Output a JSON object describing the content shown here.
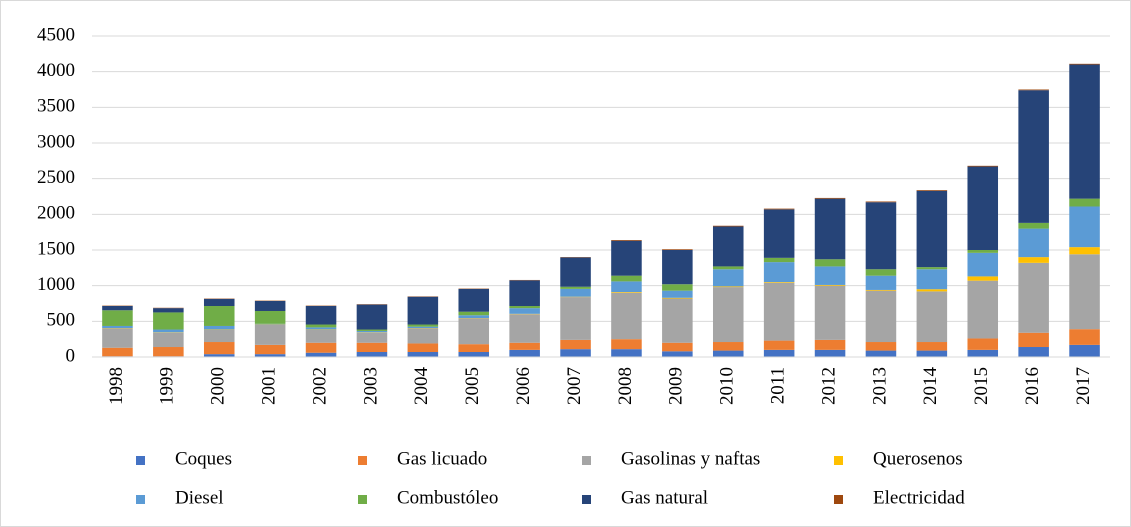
{
  "chart_data": {
    "type": "bar",
    "stacked": true,
    "categories": [
      "1998",
      "1999",
      "2000",
      "2001",
      "2002",
      "2003",
      "2004",
      "2005",
      "2006",
      "2007",
      "2008",
      "2009",
      "2010",
      "2011",
      "2012",
      "2013",
      "2014",
      "2015",
      "2016",
      "2017"
    ],
    "series": [
      {
        "name": "Coques",
        "color": "#4472c4",
        "values": [
          10,
          10,
          40,
          40,
          60,
          70,
          70,
          70,
          100,
          110,
          110,
          80,
          90,
          100,
          100,
          90,
          90,
          100,
          140,
          170
        ]
      },
      {
        "name": "Gas licuado",
        "color": "#ed7d31",
        "values": [
          120,
          130,
          170,
          130,
          140,
          130,
          120,
          110,
          100,
          130,
          140,
          120,
          120,
          130,
          140,
          120,
          120,
          160,
          200,
          220
        ]
      },
      {
        "name": "Gasolinas y naftas",
        "color": "#a5a5a5",
        "values": [
          270,
          200,
          170,
          280,
          180,
          140,
          210,
          360,
          400,
          600,
          650,
          620,
          770,
          810,
          760,
          720,
          710,
          810,
          980,
          1050
        ]
      },
      {
        "name": "Querosenos",
        "color": "#ffc000",
        "values": [
          5,
          5,
          5,
          5,
          5,
          5,
          5,
          5,
          5,
          5,
          10,
          10,
          10,
          10,
          10,
          10,
          30,
          60,
          80,
          100
        ]
      },
      {
        "name": "Diesel",
        "color": "#5b9bd5",
        "values": [
          30,
          40,
          50,
          10,
          30,
          20,
          20,
          40,
          80,
          110,
          150,
          100,
          240,
          280,
          260,
          200,
          280,
          330,
          400,
          570
        ]
      },
      {
        "name": "Combustóleo",
        "color": "#70ad47",
        "values": [
          220,
          240,
          280,
          180,
          40,
          20,
          30,
          50,
          30,
          30,
          80,
          90,
          40,
          60,
          100,
          90,
          30,
          40,
          80,
          110
        ]
      },
      {
        "name": "Gas natural",
        "color": "#264478",
        "values": [
          60,
          60,
          100,
          140,
          260,
          350,
          390,
          320,
          360,
          410,
          490,
          480,
          560,
          680,
          850,
          940,
          1070,
          1170,
          1860,
          1880
        ]
      },
      {
        "name": "Electricidad",
        "color": "#9e480e",
        "values": [
          5,
          5,
          5,
          5,
          5,
          5,
          5,
          5,
          5,
          5,
          10,
          10,
          10,
          10,
          10,
          10,
          10,
          10,
          10,
          10
        ]
      }
    ],
    "ylim": [
      0,
      4500
    ],
    "yticks": [
      0,
      500,
      1000,
      1500,
      2000,
      2500,
      3000,
      3500,
      4000,
      4500
    ],
    "grid": true,
    "legend": "bottom"
  }
}
